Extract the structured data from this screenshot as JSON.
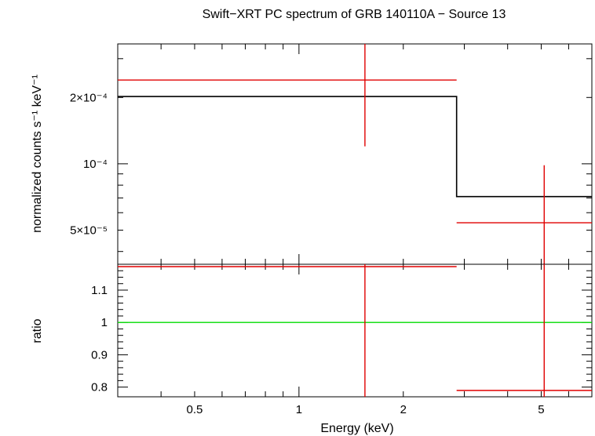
{
  "chart_data": [
    {
      "panel": "top",
      "type": "step",
      "title": "Swift−XRT PC spectrum of GRB 140110A − Source 13",
      "xlabel": "",
      "ylabel": "normalized counts s⁻¹ keV⁻¹",
      "xscale": "log",
      "yscale": "log",
      "xlim": [
        0.3,
        7.0
      ],
      "ylim": [
        3.5e-05,
        0.00035
      ],
      "ytick_labels": [
        {
          "value": 5e-05,
          "label": "5×10⁻⁵"
        },
        {
          "value": 0.0001,
          "label": "10⁻⁴"
        },
        {
          "value": 0.0002,
          "label": "2×10⁻⁴"
        }
      ],
      "series": [
        {
          "kind": "data",
          "color": "#e00000",
          "points": [
            {
              "x": 1.55,
              "xlow": 0.3,
              "xhigh": 2.85,
              "y": 0.00024,
              "ylow": 0.00012,
              "yhigh": 0.00035
            },
            {
              "x": 5.1,
              "xlow": 2.85,
              "xhigh": 7.0,
              "y": 5.4e-05,
              "ylow": 3.5e-05,
              "yhigh": 9.85e-05
            }
          ]
        },
        {
          "kind": "model",
          "color": "#000000",
          "steps": [
            {
              "xlow": 0.3,
              "xhigh": 2.85,
              "y": 0.000202
            },
            {
              "xlow": 2.85,
              "xhigh": 7.0,
              "y": 7.1e-05
            }
          ]
        }
      ]
    },
    {
      "panel": "bottom",
      "type": "errorbar",
      "xlabel": "Energy (keV)",
      "ylabel": "ratio",
      "xscale": "log",
      "xlim": [
        0.3,
        7.0
      ],
      "ylim": [
        0.77,
        1.18
      ],
      "xtick_labels": [
        {
          "value": 0.5,
          "label": "0.5"
        },
        {
          "value": 1,
          "label": "1"
        },
        {
          "value": 2,
          "label": "2"
        },
        {
          "value": 5,
          "label": "5"
        }
      ],
      "ytick_labels": [
        {
          "value": 0.8,
          "label": "0.8"
        },
        {
          "value": 0.9,
          "label": "0.9"
        },
        {
          "value": 1.0,
          "label": "1"
        },
        {
          "value": 1.1,
          "label": "1.1"
        }
      ],
      "reference_line": {
        "y": 1.0,
        "color": "#00dd00"
      },
      "series": [
        {
          "kind": "ratio",
          "color": "#e00000",
          "points": [
            {
              "x": 1.55,
              "xlow": 0.3,
              "xhigh": 2.85,
              "y": 1.18,
              "ylow": 0.77,
              "yhigh": 1.18
            },
            {
              "x": 5.1,
              "xlow": 2.85,
              "xhigh": 7.0,
              "y": 0.78,
              "ylow": 0.77,
              "yhigh": 1.18
            }
          ]
        }
      ]
    }
  ]
}
